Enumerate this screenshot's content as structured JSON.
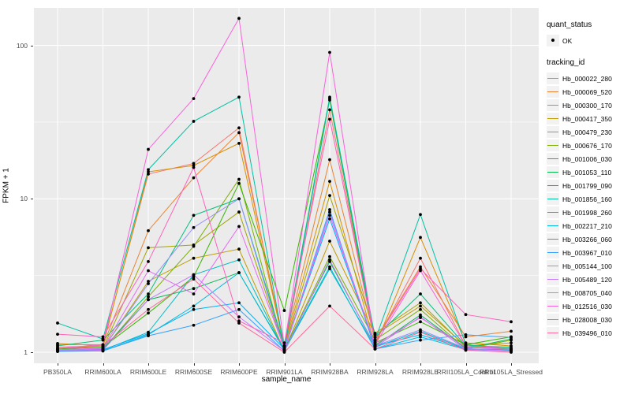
{
  "legend": {
    "quant_status_title": "quant_status",
    "quant_status_items": [
      {
        "label": "OK",
        "marker": "point"
      }
    ],
    "tracking_id_title": "tracking_id"
  },
  "chart_data": {
    "type": "line",
    "title": "",
    "xlabel": "sample_name",
    "ylabel": "FPKM + 1",
    "yscale": "log10",
    "ytick_values": [
      1,
      10,
      100
    ],
    "ytick_labels": [
      "1",
      "10",
      "100"
    ],
    "minor_gridline_values": [
      3.1623,
      31.623
    ],
    "ylim": [
      0.85,
      176
    ],
    "grid": true,
    "legend_position": "right",
    "point_color": "#000000",
    "panel_background": "#EBEBEB",
    "gridline_color": "#FFFFFF",
    "categories": [
      "PB350LA",
      "RRIM600LA",
      "RRIM600LE",
      "RRIM600SE",
      "RRIM600PE",
      "RRIM901LA",
      "RRIM928BA",
      "RRIM928LA",
      "RRIM928LE",
      "RRII105LA_Control",
      "RRII105LA_Stressed"
    ],
    "series": [
      {
        "name": "Hb_000022_280",
        "color": "#F8766D",
        "values": [
          1.12,
          1.12,
          14.5,
          17.0,
          29.0,
          1.05,
          38.0,
          1.15,
          4.1,
          1.1,
          1.05
        ]
      },
      {
        "name": "Hb_000069_520",
        "color": "#EA8331",
        "values": [
          1.05,
          1.1,
          6.2,
          13.7,
          27.0,
          1.1,
          18.0,
          1.2,
          3.6,
          1.26,
          1.37
        ]
      },
      {
        "name": "Hb_000300_170",
        "color": "#D89000",
        "values": [
          1.14,
          1.1,
          15.0,
          16.5,
          23.0,
          1.08,
          13.0,
          1.1,
          5.6,
          1.15,
          1.1
        ]
      },
      {
        "name": "Hb_000417_350",
        "color": "#C09B00",
        "values": [
          1.02,
          1.05,
          2.9,
          4.1,
          4.7,
          1.02,
          5.3,
          1.3,
          2.0,
          1.1,
          1.15
        ]
      },
      {
        "name": "Hb_000479_230",
        "color": "#A3A500",
        "values": [
          1.03,
          1.06,
          4.8,
          5.0,
          8.2,
          1.05,
          10.5,
          1.33,
          2.1,
          1.08,
          1.05
        ]
      },
      {
        "name": "Hb_000676_170",
        "color": "#7CAE00",
        "values": [
          1.02,
          1.04,
          2.3,
          4.9,
          13.4,
          1.03,
          4.2,
          1.2,
          1.9,
          1.05,
          1.2
        ]
      },
      {
        "name": "Hb_001006_030",
        "color": "#39B600",
        "values": [
          1.05,
          1.08,
          1.8,
          3.1,
          12.6,
          1.87,
          44.0,
          1.15,
          1.58,
          1.12,
          1.26
        ]
      },
      {
        "name": "Hb_001053_110",
        "color": "#00BB4E",
        "values": [
          1.04,
          1.05,
          2.2,
          2.6,
          3.3,
          1.04,
          3.9,
          1.1,
          1.75,
          1.06,
          1.22
        ]
      },
      {
        "name": "Hb_001799_090",
        "color": "#00BF7D",
        "values": [
          1.1,
          1.2,
          2.4,
          7.8,
          10.0,
          1.1,
          46.0,
          1.25,
          2.4,
          1.1,
          1.08
        ]
      },
      {
        "name": "Hb_001856_160",
        "color": "#00C1A3",
        "values": [
          1.55,
          1.22,
          15.5,
          32.0,
          46.0,
          1.05,
          45.0,
          1.2,
          7.9,
          1.12,
          1.05
        ]
      },
      {
        "name": "Hb_001998_260",
        "color": "#00BFC4",
        "values": [
          1.02,
          1.03,
          1.35,
          3.2,
          4.0,
          1.02,
          3.5,
          1.08,
          1.37,
          1.05,
          1.03
        ]
      },
      {
        "name": "Hb_002217_210",
        "color": "#00BAE0",
        "values": [
          1.03,
          1.02,
          1.3,
          2.0,
          3.3,
          1.03,
          3.6,
          1.05,
          1.26,
          1.04,
          1.02
        ]
      },
      {
        "name": "Hb_003266_060",
        "color": "#00B0F6",
        "values": [
          1.02,
          1.04,
          1.32,
          1.9,
          2.1,
          1.05,
          7.4,
          1.1,
          1.3,
          1.05,
          1.04
        ]
      },
      {
        "name": "Hb_003967_010",
        "color": "#35A2FF",
        "values": [
          1.01,
          1.02,
          1.28,
          1.5,
          1.9,
          1.02,
          8.5,
          1.05,
          1.2,
          1.3,
          1.25
        ]
      },
      {
        "name": "Hb_005144_100",
        "color": "#9590FF",
        "values": [
          1.03,
          1.05,
          2.8,
          6.5,
          10.0,
          1.04,
          8.2,
          1.1,
          1.4,
          1.06,
          1.02
        ]
      },
      {
        "name": "Hb_005489_120",
        "color": "#C77CFF",
        "values": [
          1.02,
          1.03,
          2.2,
          3.2,
          1.7,
          1.02,
          4.0,
          1.08,
          1.7,
          1.04,
          1.02
        ]
      },
      {
        "name": "Hb_008705_040",
        "color": "#E76BF3",
        "values": [
          1.04,
          1.06,
          3.4,
          2.4,
          6.6,
          1.06,
          7.8,
          1.12,
          1.68,
          1.08,
          1.04
        ]
      },
      {
        "name": "Hb_012516_030",
        "color": "#FA62DB",
        "values": [
          1.06,
          1.12,
          21.0,
          45.0,
          150.0,
          1.1,
          90.0,
          1.12,
          3.4,
          1.1,
          1.06
        ]
      },
      {
        "name": "Hb_028008_030",
        "color": "#FF62BC",
        "values": [
          1.31,
          1.26,
          3.9,
          16.0,
          1.6,
          1.15,
          33.0,
          1.18,
          3.5,
          1.76,
          1.58
        ]
      },
      {
        "name": "Hb_039496_010",
        "color": "#FF6A98",
        "values": [
          1.08,
          1.1,
          1.9,
          3.0,
          1.55,
          1.0,
          2.0,
          1.05,
          1.35,
          1.03,
          1.0
        ]
      }
    ]
  }
}
